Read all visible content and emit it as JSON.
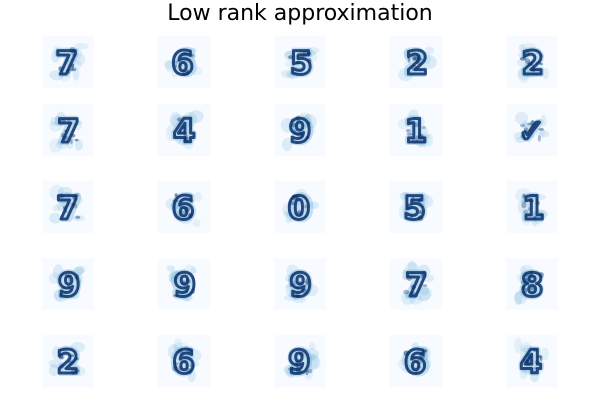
{
  "figure": {
    "title": "Low rank approximation"
  },
  "colormap": {
    "name": "Blues",
    "low": "#f7fbff",
    "mid": "#6baed6",
    "high": "#08306b"
  },
  "grid": {
    "rows": 5,
    "cols": 5,
    "digits": [
      "7",
      "6",
      "5",
      "2",
      "2",
      "7",
      "4",
      "9",
      "1",
      "v",
      "7",
      "6",
      "0",
      "5",
      "1",
      "9",
      "9",
      "9",
      "7",
      "8",
      "2",
      "6",
      "9",
      "6",
      "4"
    ]
  }
}
